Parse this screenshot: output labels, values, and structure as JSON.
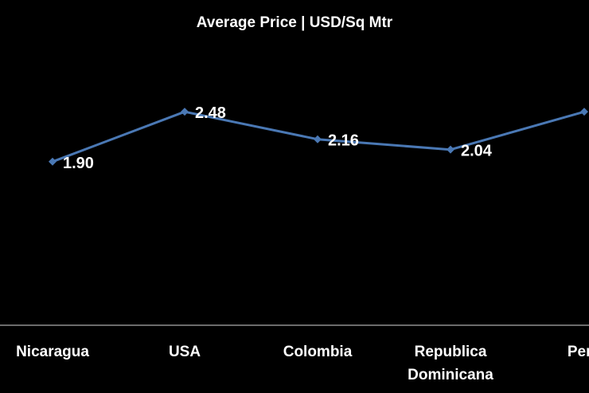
{
  "chart_data": {
    "type": "line",
    "title": "Average Price | USD/Sq Mtr",
    "categories": [
      [
        "Nicaragua"
      ],
      [
        "USA"
      ],
      [
        "Colombia"
      ],
      [
        "Republica",
        "Dominicana"
      ],
      [
        "Peru"
      ]
    ],
    "series": [
      {
        "values": [
          1.9,
          2.48,
          2.16,
          2.04,
          2.48
        ],
        "labels": [
          "1.90",
          "2.48",
          "2.16",
          "2.04",
          ""
        ]
      }
    ],
    "ylim": [
      0,
      3.5
    ],
    "grid": false,
    "legend": "none",
    "colors": {
      "background": "#000000",
      "line": "#4a78b4",
      "text": "#ffffff",
      "axis": "#d9d9d9"
    }
  }
}
